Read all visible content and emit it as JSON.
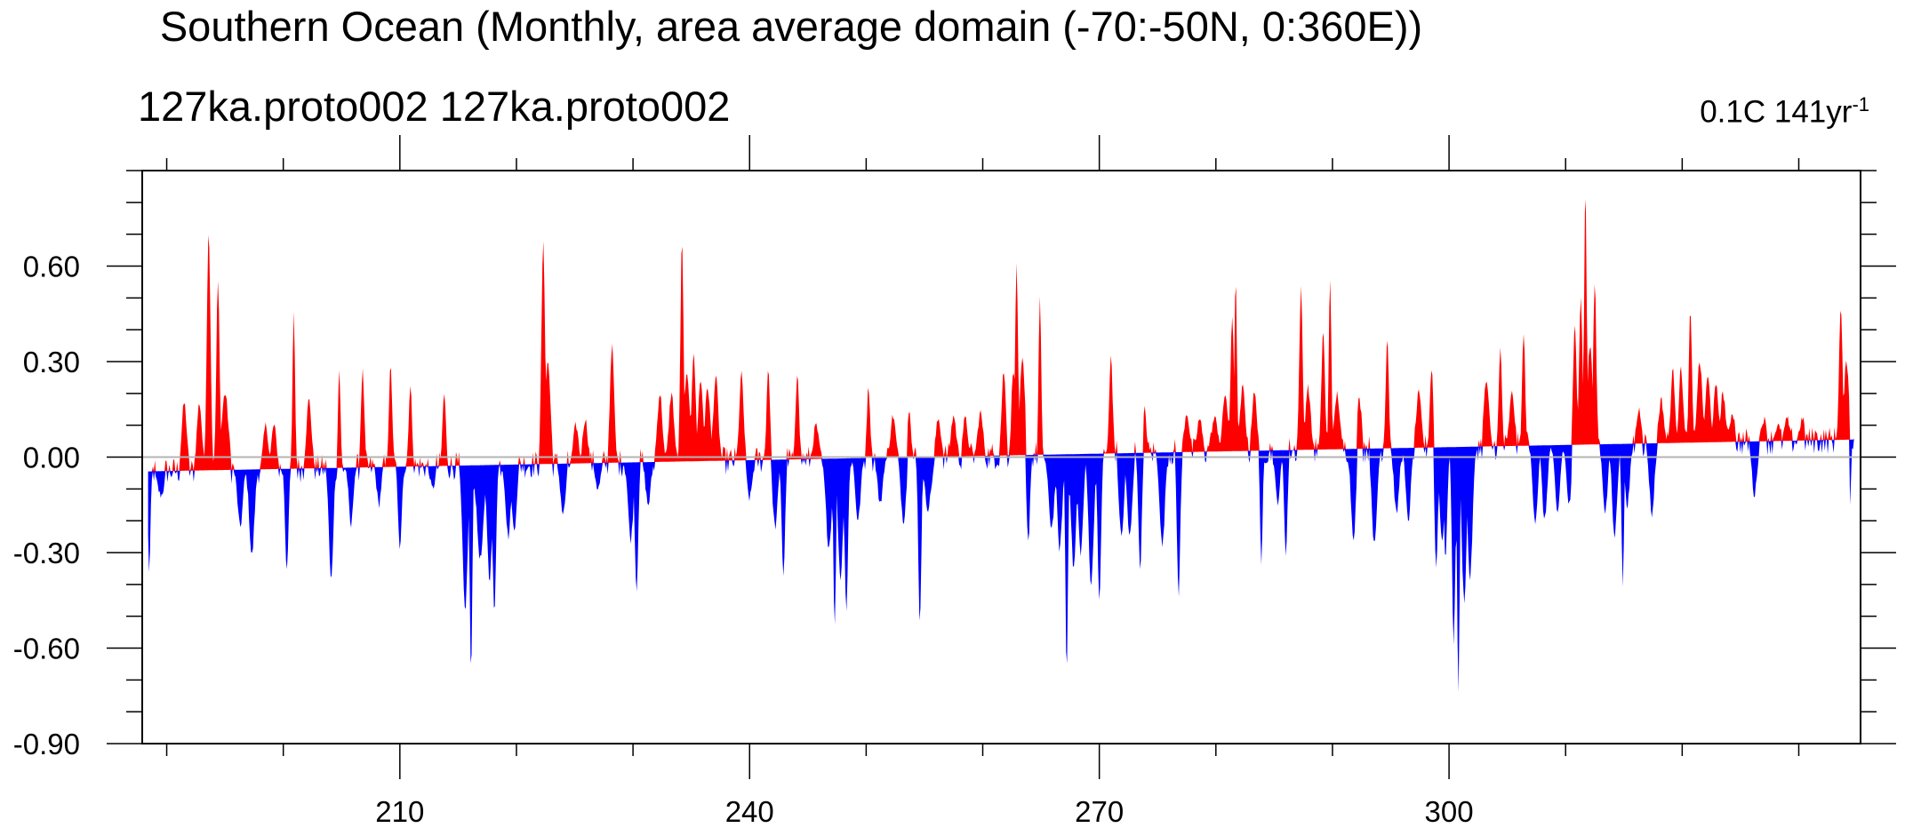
{
  "title": "Southern Ocean (Monthly, area average domain (-70:-50N, 0:360E))",
  "left_subtitle": "127ka.proto002  127ka.proto002",
  "right_subtitle": "0.1C 141yr",
  "right_subtitle_exponent": "-1",
  "colors": {
    "positive": "#ff0000",
    "negative": "#0000ff",
    "axis": "#000000",
    "zero_line": "#b4b4b4"
  },
  "chart_data": {
    "type": "area",
    "title": "Southern Ocean (Monthly, area average domain (-70:-50N, 0:360E))",
    "xlabel": "",
    "ylabel": "",
    "xlim": [
      187.9,
      335.3
    ],
    "ylim": [
      -0.9,
      0.9
    ],
    "x_ticks": [
      210,
      240,
      270,
      300
    ],
    "x_tick_labels": [
      "210",
      "240",
      "270",
      "300"
    ],
    "x_minor_step": 10,
    "y_ticks": [
      -0.9,
      -0.6,
      -0.3,
      0.0,
      0.3,
      0.6
    ],
    "y_tick_labels": [
      "-0.90",
      "-0.60",
      "-0.30",
      "0.00",
      "0.30",
      "0.60"
    ],
    "y_minor_step": 0.1,
    "data_start": 188.4,
    "data_end": 334.7,
    "reference_line": {
      "description": "fill reference (trend) line",
      "x": [
        188.4,
        334.7
      ],
      "y": [
        -0.045,
        0.055
      ]
    },
    "spikes": [
      {
        "x": 188.5,
        "y": -0.36,
        "w": 0.15
      },
      {
        "x": 189.5,
        "y": -0.12,
        "w": 0.4
      },
      {
        "x": 191.5,
        "y": 0.17,
        "w": 0.3
      },
      {
        "x": 192.8,
        "y": 0.17,
        "w": 0.3
      },
      {
        "x": 193.6,
        "y": 0.71,
        "w": 0.22
      },
      {
        "x": 194.4,
        "y": 0.55,
        "w": 0.2
      },
      {
        "x": 195.0,
        "y": 0.2,
        "w": 0.4
      },
      {
        "x": 196.3,
        "y": -0.22,
        "w": 0.3
      },
      {
        "x": 197.3,
        "y": -0.31,
        "w": 0.3
      },
      {
        "x": 198.5,
        "y": 0.1,
        "w": 0.3
      },
      {
        "x": 199.2,
        "y": 0.1,
        "w": 0.3
      },
      {
        "x": 200.3,
        "y": -0.35,
        "w": 0.2
      },
      {
        "x": 200.9,
        "y": 0.45,
        "w": 0.15
      },
      {
        "x": 202.2,
        "y": 0.18,
        "w": 0.3
      },
      {
        "x": 204.1,
        "y": -0.39,
        "w": 0.25
      },
      {
        "x": 204.8,
        "y": 0.28,
        "w": 0.15
      },
      {
        "x": 205.8,
        "y": -0.22,
        "w": 0.25
      },
      {
        "x": 206.8,
        "y": 0.27,
        "w": 0.2
      },
      {
        "x": 208.2,
        "y": -0.15,
        "w": 0.25
      },
      {
        "x": 209.2,
        "y": 0.28,
        "w": 0.2
      },
      {
        "x": 210.0,
        "y": -0.3,
        "w": 0.2
      },
      {
        "x": 210.9,
        "y": 0.22,
        "w": 0.2
      },
      {
        "x": 212.8,
        "y": -0.1,
        "w": 0.3
      },
      {
        "x": 213.8,
        "y": 0.2,
        "w": 0.2
      },
      {
        "x": 215.6,
        "y": -0.48,
        "w": 0.3
      },
      {
        "x": 216.1,
        "y": -0.69,
        "w": 0.15
      },
      {
        "x": 216.9,
        "y": -0.32,
        "w": 0.4
      },
      {
        "x": 217.7,
        "y": -0.38,
        "w": 0.3
      },
      {
        "x": 218.1,
        "y": -0.49,
        "w": 0.2
      },
      {
        "x": 219.3,
        "y": -0.25,
        "w": 0.3
      },
      {
        "x": 219.8,
        "y": -0.23,
        "w": 0.3
      },
      {
        "x": 222.3,
        "y": 0.67,
        "w": 0.22
      },
      {
        "x": 222.7,
        "y": 0.3,
        "w": 0.3
      },
      {
        "x": 224.0,
        "y": -0.18,
        "w": 0.3
      },
      {
        "x": 225.1,
        "y": 0.1,
        "w": 0.3
      },
      {
        "x": 225.9,
        "y": 0.12,
        "w": 0.3
      },
      {
        "x": 227.0,
        "y": -0.1,
        "w": 0.3
      },
      {
        "x": 228.2,
        "y": 0.35,
        "w": 0.25
      },
      {
        "x": 229.8,
        "y": -0.26,
        "w": 0.3
      },
      {
        "x": 230.3,
        "y": -0.42,
        "w": 0.2
      },
      {
        "x": 231.3,
        "y": -0.15,
        "w": 0.3
      },
      {
        "x": 232.3,
        "y": 0.2,
        "w": 0.3
      },
      {
        "x": 233.3,
        "y": 0.2,
        "w": 0.3
      },
      {
        "x": 234.2,
        "y": 0.68,
        "w": 0.18
      },
      {
        "x": 234.6,
        "y": 0.25,
        "w": 0.4
      },
      {
        "x": 235.2,
        "y": 0.32,
        "w": 0.25
      },
      {
        "x": 235.8,
        "y": 0.24,
        "w": 0.3
      },
      {
        "x": 236.4,
        "y": 0.22,
        "w": 0.3
      },
      {
        "x": 237.1,
        "y": 0.25,
        "w": 0.3
      },
      {
        "x": 239.3,
        "y": 0.26,
        "w": 0.25
      },
      {
        "x": 240.0,
        "y": -0.13,
        "w": 0.3
      },
      {
        "x": 241.6,
        "y": 0.28,
        "w": 0.2
      },
      {
        "x": 242.2,
        "y": -0.22,
        "w": 0.3
      },
      {
        "x": 242.9,
        "y": -0.37,
        "w": 0.2
      },
      {
        "x": 244.1,
        "y": 0.27,
        "w": 0.2
      },
      {
        "x": 245.7,
        "y": 0.1,
        "w": 0.3
      },
      {
        "x": 246.8,
        "y": -0.28,
        "w": 0.35
      },
      {
        "x": 247.3,
        "y": -0.54,
        "w": 0.15
      },
      {
        "x": 247.8,
        "y": -0.38,
        "w": 0.3
      },
      {
        "x": 248.3,
        "y": -0.48,
        "w": 0.2
      },
      {
        "x": 249.3,
        "y": -0.2,
        "w": 0.3
      },
      {
        "x": 250.2,
        "y": 0.22,
        "w": 0.2
      },
      {
        "x": 251.2,
        "y": -0.15,
        "w": 0.3
      },
      {
        "x": 252.3,
        "y": 0.13,
        "w": 0.3
      },
      {
        "x": 253.2,
        "y": -0.2,
        "w": 0.3
      },
      {
        "x": 253.7,
        "y": 0.16,
        "w": 0.2
      },
      {
        "x": 254.6,
        "y": -0.52,
        "w": 0.18
      },
      {
        "x": 255.3,
        "y": -0.16,
        "w": 0.4
      },
      {
        "x": 256.2,
        "y": 0.12,
        "w": 0.3
      },
      {
        "x": 257.5,
        "y": 0.13,
        "w": 0.3
      },
      {
        "x": 258.5,
        "y": 0.12,
        "w": 0.3
      },
      {
        "x": 259.8,
        "y": 0.14,
        "w": 0.3
      },
      {
        "x": 261.8,
        "y": 0.27,
        "w": 0.25
      },
      {
        "x": 262.6,
        "y": 0.27,
        "w": 0.2
      },
      {
        "x": 262.9,
        "y": 0.6,
        "w": 0.18
      },
      {
        "x": 263.4,
        "y": 0.3,
        "w": 0.3
      },
      {
        "x": 263.9,
        "y": -0.27,
        "w": 0.2
      },
      {
        "x": 264.9,
        "y": 0.5,
        "w": 0.15
      },
      {
        "x": 265.9,
        "y": -0.22,
        "w": 0.35
      },
      {
        "x": 266.6,
        "y": -0.29,
        "w": 0.3
      },
      {
        "x": 267.2,
        "y": -0.68,
        "w": 0.15
      },
      {
        "x": 267.8,
        "y": -0.35,
        "w": 0.3
      },
      {
        "x": 268.4,
        "y": -0.3,
        "w": 0.3
      },
      {
        "x": 269.3,
        "y": -0.4,
        "w": 0.3
      },
      {
        "x": 270.0,
        "y": -0.46,
        "w": 0.2
      },
      {
        "x": 271.0,
        "y": 0.32,
        "w": 0.2
      },
      {
        "x": 271.9,
        "y": -0.25,
        "w": 0.3
      },
      {
        "x": 272.6,
        "y": -0.25,
        "w": 0.3
      },
      {
        "x": 273.5,
        "y": -0.35,
        "w": 0.2
      },
      {
        "x": 273.9,
        "y": 0.15,
        "w": 0.2
      },
      {
        "x": 275.4,
        "y": -0.28,
        "w": 0.3
      },
      {
        "x": 276.8,
        "y": -0.43,
        "w": 0.2
      },
      {
        "x": 277.5,
        "y": 0.14,
        "w": 0.3
      },
      {
        "x": 278.6,
        "y": 0.12,
        "w": 0.3
      },
      {
        "x": 279.9,
        "y": 0.12,
        "w": 0.4
      },
      {
        "x": 280.8,
        "y": 0.2,
        "w": 0.3
      },
      {
        "x": 281.4,
        "y": 0.45,
        "w": 0.2
      },
      {
        "x": 281.7,
        "y": 0.55,
        "w": 0.15
      },
      {
        "x": 282.3,
        "y": 0.22,
        "w": 0.3
      },
      {
        "x": 283.3,
        "y": 0.2,
        "w": 0.3
      },
      {
        "x": 283.9,
        "y": -0.35,
        "w": 0.15
      },
      {
        "x": 285.3,
        "y": -0.14,
        "w": 0.3
      },
      {
        "x": 286.0,
        "y": -0.3,
        "w": 0.2
      },
      {
        "x": 287.3,
        "y": 0.53,
        "w": 0.2
      },
      {
        "x": 287.9,
        "y": 0.22,
        "w": 0.3
      },
      {
        "x": 289.2,
        "y": 0.4,
        "w": 0.2
      },
      {
        "x": 289.8,
        "y": 0.57,
        "w": 0.15
      },
      {
        "x": 290.4,
        "y": 0.2,
        "w": 0.3
      },
      {
        "x": 291.8,
        "y": -0.25,
        "w": 0.3
      },
      {
        "x": 292.3,
        "y": 0.18,
        "w": 0.3
      },
      {
        "x": 293.6,
        "y": -0.28,
        "w": 0.3
      },
      {
        "x": 294.7,
        "y": 0.38,
        "w": 0.18
      },
      {
        "x": 295.5,
        "y": -0.18,
        "w": 0.3
      },
      {
        "x": 296.5,
        "y": -0.2,
        "w": 0.3
      },
      {
        "x": 297.4,
        "y": 0.2,
        "w": 0.3
      },
      {
        "x": 298.5,
        "y": 0.28,
        "w": 0.2
      },
      {
        "x": 298.9,
        "y": -0.35,
        "w": 0.2
      },
      {
        "x": 299.4,
        "y": -0.26,
        "w": 0.3
      },
      {
        "x": 299.7,
        "y": -0.32,
        "w": 0.2
      },
      {
        "x": 300.4,
        "y": -0.58,
        "w": 0.2
      },
      {
        "x": 300.8,
        "y": -0.74,
        "w": 0.15
      },
      {
        "x": 301.3,
        "y": -0.45,
        "w": 0.3
      },
      {
        "x": 301.8,
        "y": -0.38,
        "w": 0.3
      },
      {
        "x": 303.2,
        "y": 0.24,
        "w": 0.3
      },
      {
        "x": 304.4,
        "y": 0.34,
        "w": 0.18
      },
      {
        "x": 305.4,
        "y": 0.2,
        "w": 0.3
      },
      {
        "x": 306.4,
        "y": 0.39,
        "w": 0.18
      },
      {
        "x": 307.4,
        "y": -0.2,
        "w": 0.3
      },
      {
        "x": 308.2,
        "y": -0.2,
        "w": 0.3
      },
      {
        "x": 309.3,
        "y": -0.18,
        "w": 0.3
      },
      {
        "x": 310.3,
        "y": -0.15,
        "w": 0.3
      },
      {
        "x": 310.8,
        "y": 0.42,
        "w": 0.2
      },
      {
        "x": 311.3,
        "y": 0.5,
        "w": 0.2
      },
      {
        "x": 311.7,
        "y": 0.85,
        "w": 0.15
      },
      {
        "x": 312.1,
        "y": 0.35,
        "w": 0.3
      },
      {
        "x": 312.5,
        "y": 0.55,
        "w": 0.18
      },
      {
        "x": 313.4,
        "y": -0.17,
        "w": 0.3
      },
      {
        "x": 314.2,
        "y": -0.25,
        "w": 0.3
      },
      {
        "x": 314.9,
        "y": -0.4,
        "w": 0.15
      },
      {
        "x": 315.3,
        "y": -0.15,
        "w": 0.3
      },
      {
        "x": 316.3,
        "y": 0.15,
        "w": 0.3
      },
      {
        "x": 317.4,
        "y": -0.18,
        "w": 0.3
      },
      {
        "x": 318.2,
        "y": 0.18,
        "w": 0.3
      },
      {
        "x": 319.2,
        "y": 0.27,
        "w": 0.25
      },
      {
        "x": 319.9,
        "y": 0.28,
        "w": 0.25
      },
      {
        "x": 320.7,
        "y": 0.46,
        "w": 0.18
      },
      {
        "x": 321.5,
        "y": 0.3,
        "w": 0.3
      },
      {
        "x": 322.2,
        "y": 0.25,
        "w": 0.3
      },
      {
        "x": 322.9,
        "y": 0.22,
        "w": 0.3
      },
      {
        "x": 323.5,
        "y": 0.2,
        "w": 0.3
      },
      {
        "x": 324.3,
        "y": 0.14,
        "w": 0.3
      },
      {
        "x": 326.2,
        "y": -0.12,
        "w": 0.3
      },
      {
        "x": 327.0,
        "y": 0.12,
        "w": 0.3
      },
      {
        "x": 328.2,
        "y": 0.1,
        "w": 0.3
      },
      {
        "x": 329.0,
        "y": 0.12,
        "w": 0.3
      },
      {
        "x": 330.3,
        "y": 0.12,
        "w": 0.3
      },
      {
        "x": 331.4,
        "y": 0.08,
        "w": 0.3
      },
      {
        "x": 333.6,
        "y": 0.47,
        "w": 0.2
      },
      {
        "x": 334.1,
        "y": 0.3,
        "w": 0.3
      },
      {
        "x": 334.4,
        "y": -0.15,
        "w": 0.12
      }
    ],
    "noise_amplitude": 0.045
  }
}
